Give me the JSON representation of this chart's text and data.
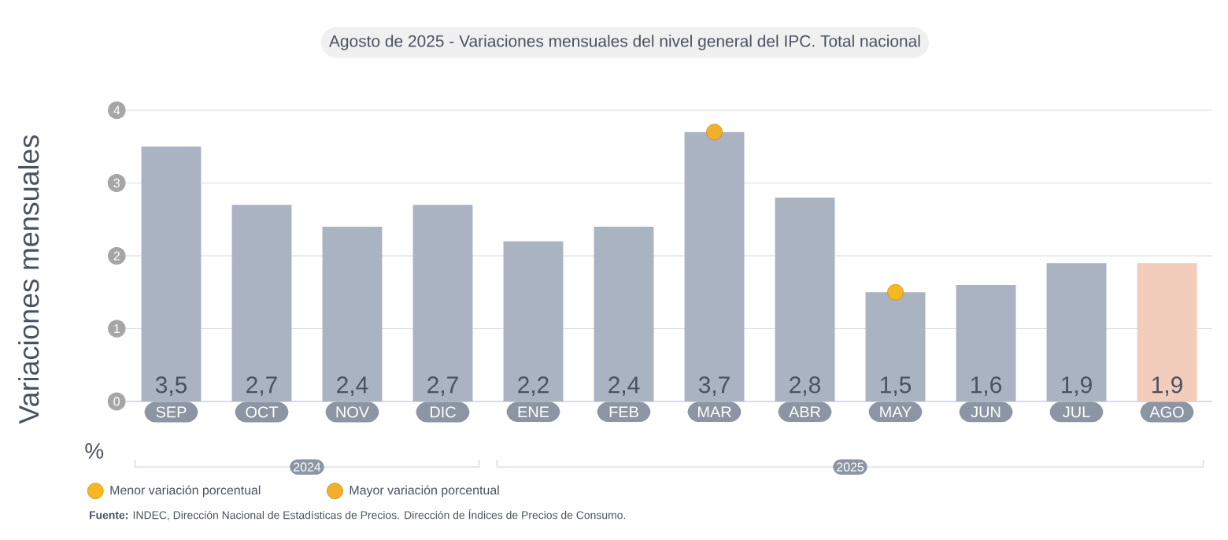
{
  "chart_data": {
    "type": "bar",
    "title": "Agosto de 2025 - Variaciones mensuales del nivel general del IPC. Total nacional",
    "ylabel": "Variaciones mensuales",
    "categories": [
      "SEP",
      "OCT",
      "NOV",
      "DIC",
      "ENE",
      "FEB",
      "MAR",
      "ABR",
      "MAY",
      "JUN",
      "JUL",
      "AGO"
    ],
    "series": [
      {
        "values": [
          3.5,
          2.7,
          2.4,
          2.7,
          2.2,
          2.4,
          3.7,
          2.8,
          1.5,
          1.6,
          1.9,
          1.9
        ],
        "colors": [
          "#a9b3c1",
          "#a9b3c1",
          "#a9b3c1",
          "#a9b3c1",
          "#a9b3c1",
          "#a9b3c1",
          "#a9b3c1",
          "#a9b3c1",
          "#a9b3c1",
          "#a9b3c1",
          "#a9b3c1",
          "#f3cdbb"
        ],
        "value_labels": [
          "3,5",
          "2,7",
          "2,4",
          "2,7",
          "2,2",
          "2,4",
          "3,7",
          "2,8",
          "1,5",
          "1,6",
          "1,9",
          "1,9"
        ]
      },
      {
        "type": "scatter",
        "name": "Menor variación porcentual",
        "color": "#f5b820",
        "x": [
          "MAY"
        ],
        "values": [
          1.5
        ]
      },
      {
        "type": "scatter",
        "name": "Mayor variación porcentual",
        "color": "#f2b02a",
        "x": [
          "MAR"
        ],
        "values": [
          3.7
        ]
      }
    ],
    "ylim": [
      0,
      4
    ],
    "yticks": [
      0,
      1,
      2,
      3,
      4
    ],
    "grid": "y",
    "legend": "bottom left",
    "marker": "circle",
    "annotations": [
      "%",
      "2024",
      "2025",
      "**Fuente:** INDEC, Dirección Nacional de Estadísticas de Precios. Dirección de Índices de Precios de Consumo."
    ]
  }
}
